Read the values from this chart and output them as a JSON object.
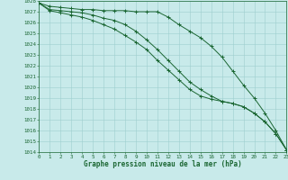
{
  "title": "Graphe pression niveau de la mer (hPa)",
  "background_color": "#c8eaea",
  "grid_color": "#9ecece",
  "line_color": "#1a6632",
  "xlim": [
    0,
    23
  ],
  "ylim": [
    1014,
    1028
  ],
  "xticks": [
    0,
    1,
    2,
    3,
    4,
    5,
    6,
    7,
    8,
    9,
    10,
    11,
    12,
    13,
    14,
    15,
    16,
    17,
    18,
    19,
    20,
    21,
    22,
    23
  ],
  "yticks": [
    1014,
    1015,
    1016,
    1017,
    1018,
    1019,
    1020,
    1021,
    1022,
    1023,
    1024,
    1025,
    1026,
    1027,
    1028
  ],
  "series": [
    [
      1027.8,
      1027.5,
      1027.4,
      1027.3,
      1027.2,
      1027.2,
      1027.1,
      1027.1,
      1027.1,
      1027.0,
      1027.0,
      1027.0,
      1026.5,
      1025.8,
      1025.2,
      1024.6,
      1023.8,
      1022.8,
      1021.5,
      1020.2,
      1019.0,
      1017.6,
      1016.0,
      1014.2
    ],
    [
      1027.8,
      1027.2,
      1027.1,
      1027.0,
      1026.9,
      1026.7,
      1026.4,
      1026.2,
      1025.8,
      1025.2,
      1024.4,
      1023.5,
      1022.5,
      1021.5,
      1020.5,
      1019.8,
      1019.2,
      1018.7,
      1018.5,
      1018.2,
      1017.6,
      1016.8,
      1015.7,
      1014.2
    ],
    [
      1027.8,
      1027.1,
      1026.9,
      1026.7,
      1026.5,
      1026.2,
      1025.8,
      1025.4,
      1024.8,
      1024.2,
      1023.5,
      1022.5,
      1021.6,
      1020.7,
      1019.8,
      1019.2,
      1018.9,
      1018.7,
      1018.5,
      1018.2,
      1017.6,
      1016.8,
      1015.7,
      1014.2
    ]
  ],
  "title_fontsize": 5.5,
  "tick_fontsize": 4.2,
  "line_width": 0.7,
  "marker_size": 2.5,
  "marker_ew": 0.7
}
